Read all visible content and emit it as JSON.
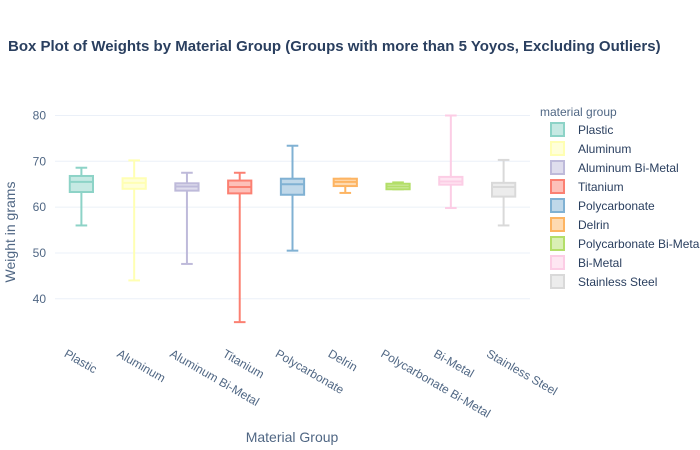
{
  "chart_data": {
    "type": "box",
    "title": "Box Plot of Weights by Material Group (Groups with more than 5 Yoyos, Excluding Outliers)",
    "xlabel": "Material Group",
    "ylabel": "Weight in grams",
    "ylim": [
      31,
      86
    ],
    "yticks": [
      40,
      50,
      60,
      70,
      80
    ],
    "grid": true,
    "legend": {
      "title": "material group",
      "placement": "right"
    },
    "categories": [
      "Plastic",
      "Aluminum",
      "Aluminum Bi-Metal",
      "Titanium",
      "Polycarbonate",
      "Delrin",
      "Polycarbonate Bi-Metal",
      "Bi-Metal",
      "Stainless Steel"
    ],
    "series": [
      {
        "name": "Plastic",
        "color": "#8dd3c7",
        "min": 56.0,
        "q1": 63.3,
        "median": 65.5,
        "q3": 66.8,
        "max": 68.6
      },
      {
        "name": "Aluminum",
        "color": "#ffffb3",
        "min": 44.0,
        "q1": 64.0,
        "median": 65.3,
        "q3": 66.3,
        "max": 70.2
      },
      {
        "name": "Aluminum Bi-Metal",
        "color": "#bebada",
        "min": 47.6,
        "q1": 63.6,
        "median": 64.5,
        "q3": 65.2,
        "max": 67.5
      },
      {
        "name": "Titanium",
        "color": "#fb8072",
        "min": 34.9,
        "q1": 63.0,
        "median": 64.4,
        "q3": 65.8,
        "max": 67.5
      },
      {
        "name": "Polycarbonate",
        "color": "#80b1d3",
        "min": 50.5,
        "q1": 62.7,
        "median": 65.0,
        "q3": 66.2,
        "max": 73.4
      },
      {
        "name": "Delrin",
        "color": "#fdb462",
        "min": 63.1,
        "q1": 64.6,
        "median": 65.5,
        "q3": 66.2,
        "max": 66.2
      },
      {
        "name": "Polycarbonate Bi-Metal",
        "color": "#b3de69",
        "min": 63.9,
        "q1": 63.9,
        "median": 64.5,
        "q3": 65.1,
        "max": 65.4
      },
      {
        "name": "Bi-Metal",
        "color": "#fccde5",
        "min": 59.8,
        "q1": 64.9,
        "median": 65.6,
        "q3": 66.6,
        "max": 80.0
      },
      {
        "name": "Stainless Steel",
        "color": "#d9d9d9",
        "min": 56.0,
        "q1": 62.3,
        "median": 64.4,
        "q3": 65.3,
        "max": 70.3
      }
    ]
  }
}
